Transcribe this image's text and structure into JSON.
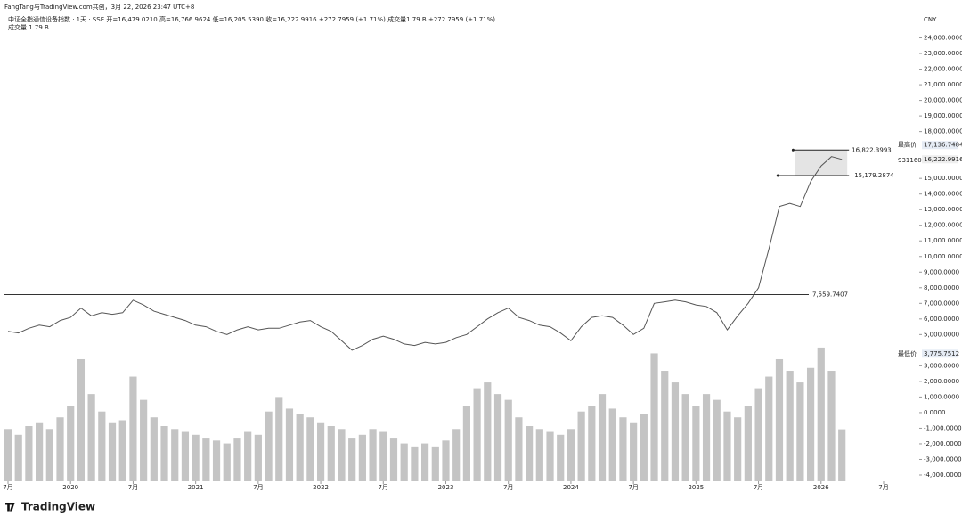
{
  "header": {
    "credit": "FangTang与TradingView.com共创，3月 22, 2026 23:47 UTC+8",
    "legend": "中证全指通信设备指数 · 1天 · SSE   开=16,479.0210   高=16,766.9624   低=16,205.5390   收=16,222.9916   +272.7959 (+1.71%)   成交量1.79 B   +272.7959 (+1.71%)",
    "volume_legend": "成交量   1.79 B",
    "currency": "CNY"
  },
  "footer": {
    "brand": "TradingView"
  },
  "chart_data": {
    "type": "line",
    "x": [
      "2019-07",
      "2019-08",
      "2019-09",
      "2019-10",
      "2019-11",
      "2019-12",
      "2020-01",
      "2020-02",
      "2020-03",
      "2020-04",
      "2020-05",
      "2020-06",
      "2020-07",
      "2020-08",
      "2020-09",
      "2020-10",
      "2020-11",
      "2020-12",
      "2021-01",
      "2021-02",
      "2021-03",
      "2021-04",
      "2021-05",
      "2021-06",
      "2021-07",
      "2021-08",
      "2021-09",
      "2021-10",
      "2021-11",
      "2021-12",
      "2022-01",
      "2022-02",
      "2022-03",
      "2022-04",
      "2022-05",
      "2022-06",
      "2022-07",
      "2022-08",
      "2022-09",
      "2022-10",
      "2022-11",
      "2022-12",
      "2023-01",
      "2023-02",
      "2023-03",
      "2023-04",
      "2023-05",
      "2023-06",
      "2023-07",
      "2023-08",
      "2023-09",
      "2023-10",
      "2023-11",
      "2023-12",
      "2024-01",
      "2024-02",
      "2024-03",
      "2024-04",
      "2024-05",
      "2024-06",
      "2024-07",
      "2024-08",
      "2024-09",
      "2024-10",
      "2024-11",
      "2024-12",
      "2025-01",
      "2025-02",
      "2025-03",
      "2025-04",
      "2025-05",
      "2025-06",
      "2025-07",
      "2025-08",
      "2025-09",
      "2025-10",
      "2025-11",
      "2025-12",
      "2026-01",
      "2026-02",
      "2026-03"
    ],
    "series": [
      {
        "name": "中证全指通信设备指数",
        "color": "#555555",
        "values": [
          5200,
          5100,
          5400,
          5600,
          5500,
          5900,
          6100,
          6700,
          6200,
          6400,
          6300,
          6400,
          7200,
          6900,
          6500,
          6300,
          6100,
          5900,
          5600,
          5500,
          5200,
          5000,
          5300,
          5500,
          5300,
          5400,
          5400,
          5600,
          5800,
          5900,
          5500,
          5200,
          4600,
          4000,
          4300,
          4700,
          4900,
          4700,
          4400,
          4300,
          4500,
          4400,
          4500,
          4800,
          5000,
          5500,
          6000,
          6400,
          6700,
          6100,
          5900,
          5600,
          5500,
          5100,
          4600,
          5500,
          6100,
          6200,
          6100,
          5600,
          5000,
          5400,
          7000,
          7100,
          7200,
          7100,
          6900,
          6800,
          6400,
          5300,
          6200,
          7000,
          8000,
          10500,
          13200,
          13400,
          13200,
          14800,
          15800,
          16400,
          16222.9916
        ]
      },
      {
        "name": "成交量",
        "axis": "y2",
        "color": "#c4c4c4",
        "values": [
          1.8,
          1.6,
          1.9,
          2.0,
          1.8,
          2.2,
          2.6,
          4.2,
          3.0,
          2.4,
          2.0,
          2.1,
          3.6,
          2.8,
          2.2,
          1.9,
          1.8,
          1.7,
          1.6,
          1.5,
          1.4,
          1.3,
          1.5,
          1.7,
          1.6,
          2.4,
          2.9,
          2.5,
          2.3,
          2.2,
          2.0,
          1.9,
          1.8,
          1.5,
          1.6,
          1.8,
          1.7,
          1.5,
          1.3,
          1.2,
          1.3,
          1.2,
          1.4,
          1.8,
          2.6,
          3.2,
          3.4,
          3.0,
          2.8,
          2.2,
          1.9,
          1.8,
          1.7,
          1.6,
          1.8,
          2.4,
          2.6,
          3.0,
          2.5,
          2.2,
          2.0,
          2.3,
          4.4,
          3.8,
          3.4,
          3.0,
          2.6,
          3.0,
          2.8,
          2.4,
          2.2,
          2.6,
          3.2,
          3.6,
          4.2,
          3.8,
          3.4,
          3.9,
          4.6,
          3.8,
          1.79
        ]
      }
    ],
    "xlim": [
      "2019-07",
      "2026-07"
    ],
    "xticks": [
      {
        "value": "2019-07",
        "label": "7月"
      },
      {
        "value": "2020-01",
        "label": "2020"
      },
      {
        "value": "2020-07",
        "label": "7月"
      },
      {
        "value": "2021-01",
        "label": "2021"
      },
      {
        "value": "2021-07",
        "label": "7月"
      },
      {
        "value": "2022-01",
        "label": "2022"
      },
      {
        "value": "2022-07",
        "label": "7月"
      },
      {
        "value": "2023-01",
        "label": "2023"
      },
      {
        "value": "2023-07",
        "label": "7月"
      },
      {
        "value": "2024-01",
        "label": "2024"
      },
      {
        "value": "2024-07",
        "label": "7月"
      },
      {
        "value": "2025-01",
        "label": "2025"
      },
      {
        "value": "2025-07",
        "label": "7月"
      },
      {
        "value": "2026-01",
        "label": "2026"
      },
      {
        "value": "2026-07",
        "label": "7月"
      }
    ],
    "ylim": [
      -4400,
      25400
    ],
    "yticks": [
      {
        "value": 24000,
        "label": "24,000.0000"
      },
      {
        "value": 23000,
        "label": "23,000.0000"
      },
      {
        "value": 22000,
        "label": "22,000.0000"
      },
      {
        "value": 21000,
        "label": "21,000.0000"
      },
      {
        "value": 20000,
        "label": "20,000.0000"
      },
      {
        "value": 19000,
        "label": "19,000.0000"
      },
      {
        "value": 18000,
        "label": "18,000.0000"
      },
      {
        "value": 15000,
        "label": "15,000.0000"
      },
      {
        "value": 14000,
        "label": "14,000.0000"
      },
      {
        "value": 13000,
        "label": "13,000.0000"
      },
      {
        "value": 12000,
        "label": "12,000.0000"
      },
      {
        "value": 11000,
        "label": "11,000.0000"
      },
      {
        "value": 10000,
        "label": "10,000.0000"
      },
      {
        "value": 9000,
        "label": "9,000.0000"
      },
      {
        "value": 8000,
        "label": "8,000.0000"
      },
      {
        "value": 7000,
        "label": "7,000.0000"
      },
      {
        "value": 6000,
        "label": "6,000.0000"
      },
      {
        "value": 5000,
        "label": "5,000.0000"
      },
      {
        "value": 3000,
        "label": "3,000.0000"
      },
      {
        "value": 2000,
        "label": "2,000.0000"
      },
      {
        "value": 1000,
        "label": "1,000.0000"
      },
      {
        "value": 0,
        "label": "0.0000"
      },
      {
        "value": -1000,
        "label": "-1,000.0000"
      },
      {
        "value": -2000,
        "label": "-2,000.0000"
      },
      {
        "value": -3000,
        "label": "-3,000.0000"
      },
      {
        "value": -4000,
        "label": "-4,000.0000"
      }
    ],
    "y2lim": [
      0,
      16
    ],
    "grid": false,
    "price_lines": [
      {
        "value": 7559.7407,
        "label": "7,559.7407"
      }
    ],
    "range_box": {
      "start": "2025-11",
      "end": "2026-03",
      "high": {
        "value": 16822.3993,
        "label": "16,822.3993"
      },
      "low": {
        "value": 15179.2874,
        "label": "15,179.2874"
      }
    },
    "markers": [
      {
        "name": "最高价",
        "value": 17136.7484,
        "label": "17,136.7484"
      },
      {
        "name": "最低价",
        "value": 3775.7512,
        "label": "3,775.7512"
      }
    ],
    "last_price": {
      "value": 16222.9916,
      "label": "16,222.9916",
      "countdown": "931160"
    }
  }
}
